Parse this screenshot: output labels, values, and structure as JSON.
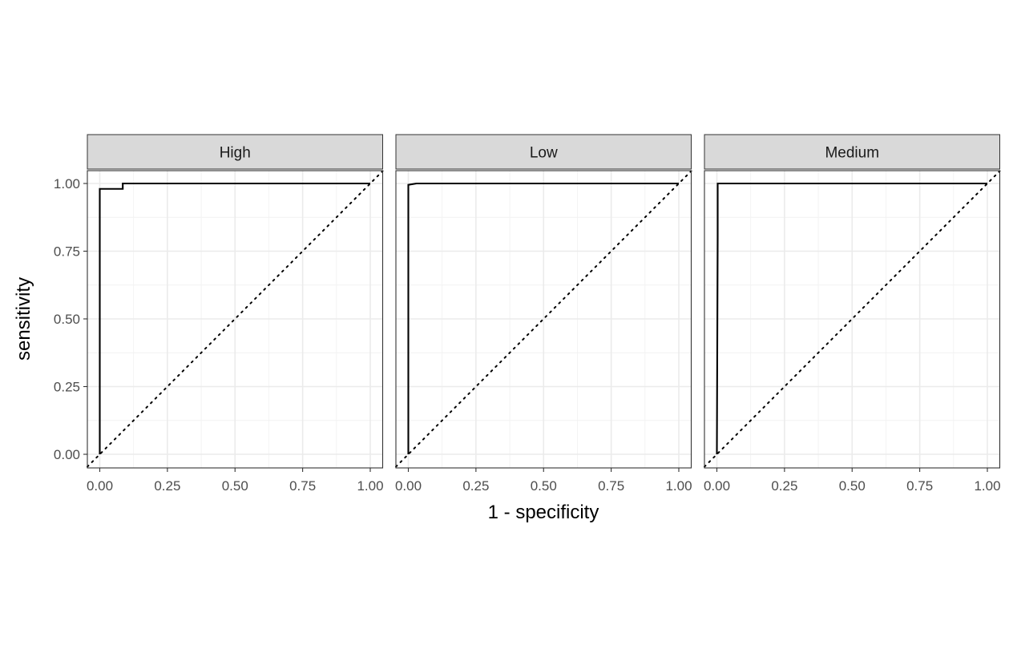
{
  "chart_data": {
    "type": "line",
    "xlabel": "1 - specificity",
    "ylabel": "sensitivity",
    "xlim": [
      0,
      1
    ],
    "ylim": [
      0,
      1
    ],
    "x_ticks": [
      "0.00",
      "0.25",
      "0.50",
      "0.75",
      "1.00"
    ],
    "y_ticks": [
      "0.00",
      "0.25",
      "0.50",
      "0.75",
      "1.00"
    ],
    "grid": true,
    "reference_line": "diagonal, dotted",
    "panels": [
      {
        "label": "High",
        "x": [
          0,
          0,
          0,
          0.085,
          0.085,
          1
        ],
        "y": [
          0,
          0.78,
          0.98,
          0.98,
          1,
          1
        ]
      },
      {
        "label": "Low",
        "x": [
          0,
          0,
          0.03,
          1
        ],
        "y": [
          0,
          0.995,
          1,
          1
        ]
      },
      {
        "label": "Medium",
        "x": [
          0,
          0.003,
          0.003,
          1
        ],
        "y": [
          0,
          0.8,
          1,
          1
        ]
      }
    ]
  }
}
